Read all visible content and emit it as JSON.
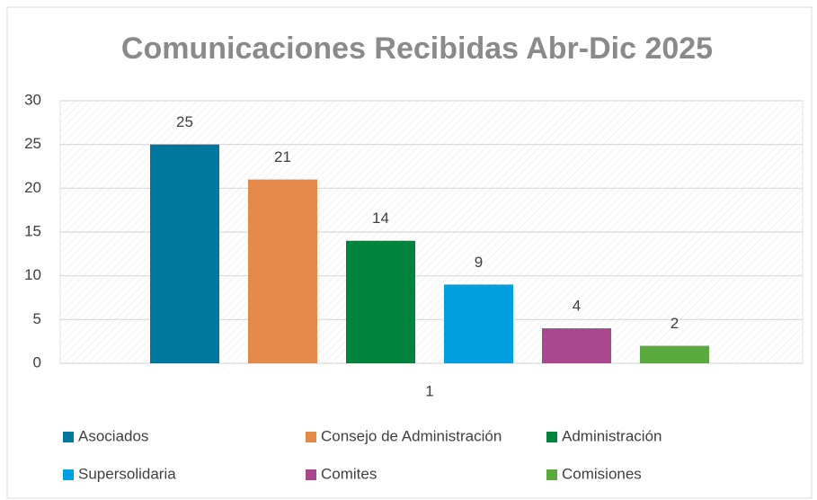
{
  "chart_data": {
    "type": "bar",
    "title": "Comunicaciones Recibidas Abr-Dic 2025",
    "categories": [
      "1"
    ],
    "series": [
      {
        "name": "Asociados",
        "color": "#00779e",
        "values": [
          25
        ]
      },
      {
        "name": "Consejo de Administración",
        "color": "#e38a4b",
        "values": [
          21
        ]
      },
      {
        "name": "Administración",
        "color": "#00843d",
        "values": [
          14
        ]
      },
      {
        "name": "Supersolidaria",
        "color": "#00a0e0",
        "values": [
          9
        ]
      },
      {
        "name": "Comites",
        "color": "#a9478f",
        "values": [
          4
        ]
      },
      {
        "name": "Comisiones",
        "color": "#5aaa3f",
        "values": [
          2
        ]
      }
    ],
    "ylim": [
      0,
      30
    ],
    "yticks": [
      0,
      5,
      10,
      15,
      20,
      25,
      30
    ],
    "grid": true,
    "legend": "bottom"
  }
}
